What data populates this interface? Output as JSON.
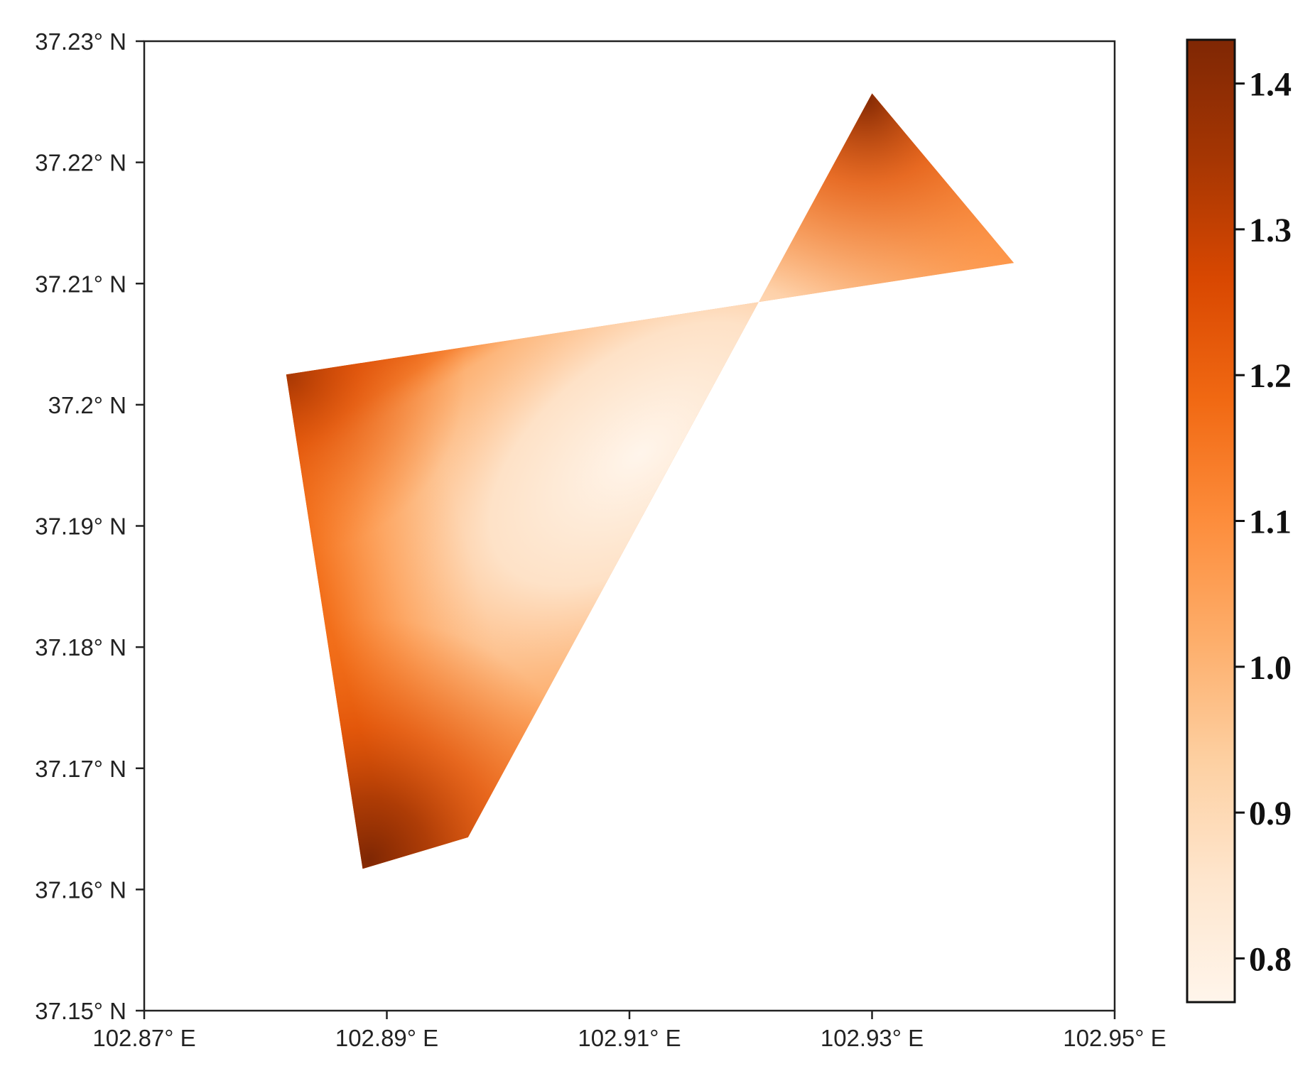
{
  "map": {
    "x_ticks": [
      "102.87° E",
      "102.89° E",
      "102.91° E",
      "102.93° E",
      "102.95° E"
    ],
    "y_ticks": [
      "37.23° N",
      "37.22° N",
      "37.21° N",
      "37.2° N",
      "37.19° N",
      "37.18° N",
      "37.17° N",
      "37.16° N",
      "37.15° N"
    ],
    "x_range": [
      102.87,
      102.95
    ],
    "y_range": [
      37.15,
      37.23
    ],
    "colormap": "Oranges",
    "region_polygon_lonlat": [
      [
        102.8817,
        37.2025
      ],
      [
        102.888,
        37.1617
      ],
      [
        102.8967,
        37.1643
      ],
      [
        102.93,
        37.2257
      ],
      [
        102.9417,
        37.2117
      ]
    ]
  },
  "colorbar": {
    "ticks": [
      {
        "value": 1.4,
        "label": "1.4"
      },
      {
        "value": 1.3,
        "label": "1.3"
      },
      {
        "value": 1.2,
        "label": "1.2"
      },
      {
        "value": 1.1,
        "label": "1.1"
      },
      {
        "value": 1.0,
        "label": "1.0"
      },
      {
        "value": 0.9,
        "label": "0.9"
      },
      {
        "value": 0.8,
        "label": "0.8"
      }
    ],
    "range": [
      0.77,
      1.43
    ],
    "colors": [
      "#fff5eb",
      "#fee6ce",
      "#fdd0a2",
      "#fdae6b",
      "#fd8d3c",
      "#f16913",
      "#d94801",
      "#a63603",
      "#7f2704"
    ]
  }
}
